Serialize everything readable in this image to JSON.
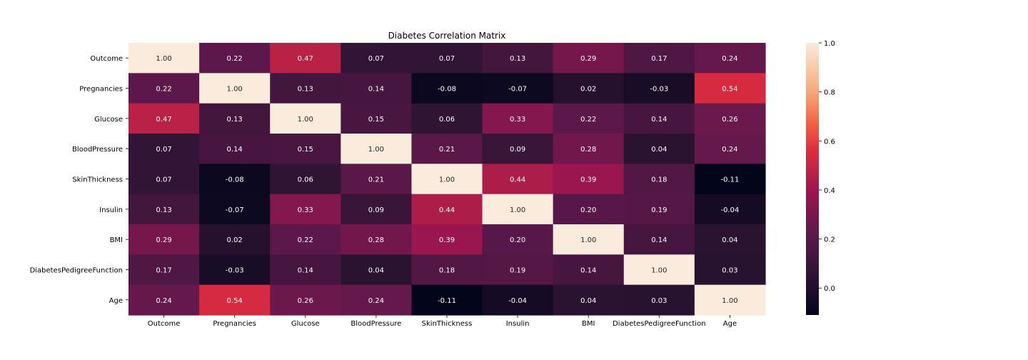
{
  "chart_data": {
    "type": "heatmap",
    "title": "Diabetes Correlation Matrix",
    "row_labels": [
      "Outcome",
      "Pregnancies",
      "Glucose",
      "BloodPressure",
      "SkinThickness",
      "Insulin",
      "BMI",
      "DiabetesPedigreeFunction",
      "Age"
    ],
    "col_labels": [
      "Outcome",
      "Pregnancies",
      "Glucose",
      "BloodPressure",
      "SkinThickness",
      "Insulin",
      "BMI",
      "DiabetesPedigreeFunction",
      "Age"
    ],
    "values": [
      [
        1.0,
        0.22,
        0.47,
        0.07,
        0.07,
        0.13,
        0.29,
        0.17,
        0.24
      ],
      [
        0.22,
        1.0,
        0.13,
        0.14,
        -0.08,
        -0.07,
        0.02,
        -0.03,
        0.54
      ],
      [
        0.47,
        0.13,
        1.0,
        0.15,
        0.06,
        0.33,
        0.22,
        0.14,
        0.26
      ],
      [
        0.07,
        0.14,
        0.15,
        1.0,
        0.21,
        0.09,
        0.28,
        0.04,
        0.24
      ],
      [
        0.07,
        -0.08,
        0.06,
        0.21,
        1.0,
        0.44,
        0.39,
        0.18,
        -0.11
      ],
      [
        0.13,
        -0.07,
        0.33,
        0.09,
        0.44,
        1.0,
        0.2,
        0.19,
        -0.04
      ],
      [
        0.29,
        0.02,
        0.22,
        0.28,
        0.39,
        0.2,
        1.0,
        0.14,
        0.04
      ],
      [
        0.17,
        -0.03,
        0.14,
        0.04,
        0.18,
        0.19,
        0.14,
        1.0,
        0.03
      ],
      [
        0.24,
        0.54,
        0.26,
        0.24,
        -0.11,
        -0.04,
        0.04,
        0.03,
        1.0
      ]
    ],
    "value_format": "0.00",
    "colormap": "rocket",
    "colorbar": {
      "range": [
        -0.11,
        1.0
      ],
      "ticks": [
        0.0,
        0.2,
        0.4,
        0.6,
        0.8,
        1.0
      ],
      "tick_labels": [
        "0.0",
        "0.2",
        "0.4",
        "0.6",
        "0.8",
        "1.0"
      ],
      "placement": "right"
    },
    "grid": false
  }
}
